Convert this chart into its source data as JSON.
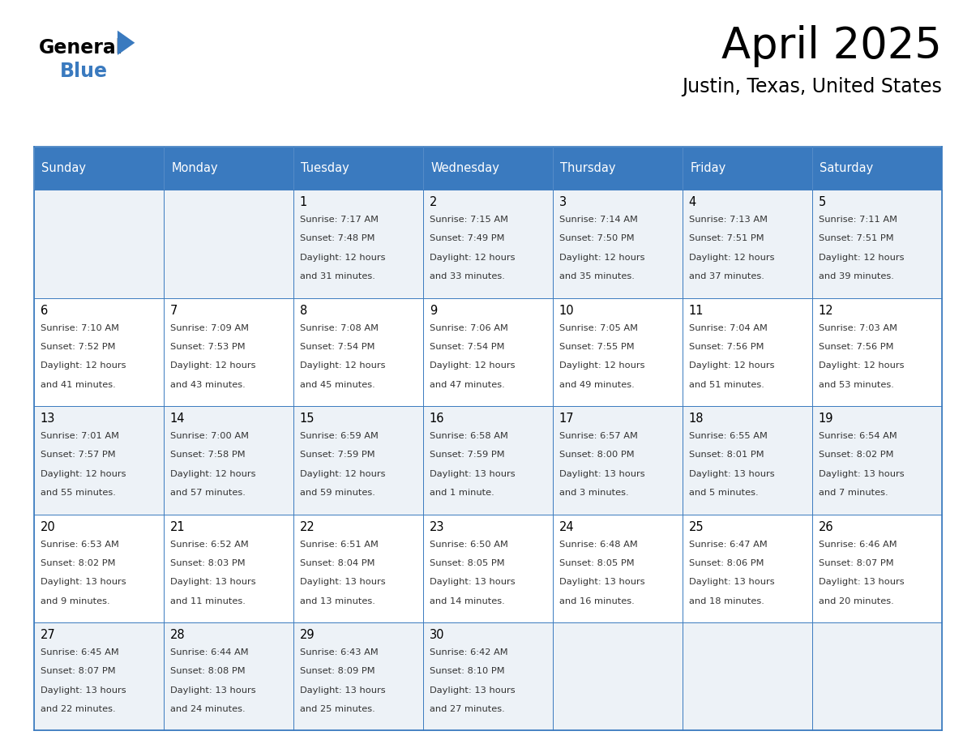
{
  "title": "April 2025",
  "subtitle": "Justin, Texas, United States",
  "header_color": "#3a7abf",
  "header_text_color": "#ffffff",
  "row_colors": [
    "#edf2f7",
    "#ffffff",
    "#edf2f7",
    "#ffffff",
    "#edf2f7"
  ],
  "border_color": "#3a7abf",
  "day_names": [
    "Sunday",
    "Monday",
    "Tuesday",
    "Wednesday",
    "Thursday",
    "Friday",
    "Saturday"
  ],
  "days": [
    {
      "date": 1,
      "col": 2,
      "row": 0,
      "sunrise": "7:17 AM",
      "sunset": "7:48 PM",
      "dl_hours": 12,
      "dl_minutes": 31
    },
    {
      "date": 2,
      "col": 3,
      "row": 0,
      "sunrise": "7:15 AM",
      "sunset": "7:49 PM",
      "dl_hours": 12,
      "dl_minutes": 33
    },
    {
      "date": 3,
      "col": 4,
      "row": 0,
      "sunrise": "7:14 AM",
      "sunset": "7:50 PM",
      "dl_hours": 12,
      "dl_minutes": 35
    },
    {
      "date": 4,
      "col": 5,
      "row": 0,
      "sunrise": "7:13 AM",
      "sunset": "7:51 PM",
      "dl_hours": 12,
      "dl_minutes": 37
    },
    {
      "date": 5,
      "col": 6,
      "row": 0,
      "sunrise": "7:11 AM",
      "sunset": "7:51 PM",
      "dl_hours": 12,
      "dl_minutes": 39
    },
    {
      "date": 6,
      "col": 0,
      "row": 1,
      "sunrise": "7:10 AM",
      "sunset": "7:52 PM",
      "dl_hours": 12,
      "dl_minutes": 41
    },
    {
      "date": 7,
      "col": 1,
      "row": 1,
      "sunrise": "7:09 AM",
      "sunset": "7:53 PM",
      "dl_hours": 12,
      "dl_minutes": 43
    },
    {
      "date": 8,
      "col": 2,
      "row": 1,
      "sunrise": "7:08 AM",
      "sunset": "7:54 PM",
      "dl_hours": 12,
      "dl_minutes": 45
    },
    {
      "date": 9,
      "col": 3,
      "row": 1,
      "sunrise": "7:06 AM",
      "sunset": "7:54 PM",
      "dl_hours": 12,
      "dl_minutes": 47
    },
    {
      "date": 10,
      "col": 4,
      "row": 1,
      "sunrise": "7:05 AM",
      "sunset": "7:55 PM",
      "dl_hours": 12,
      "dl_minutes": 49
    },
    {
      "date": 11,
      "col": 5,
      "row": 1,
      "sunrise": "7:04 AM",
      "sunset": "7:56 PM",
      "dl_hours": 12,
      "dl_minutes": 51
    },
    {
      "date": 12,
      "col": 6,
      "row": 1,
      "sunrise": "7:03 AM",
      "sunset": "7:56 PM",
      "dl_hours": 12,
      "dl_minutes": 53
    },
    {
      "date": 13,
      "col": 0,
      "row": 2,
      "sunrise": "7:01 AM",
      "sunset": "7:57 PM",
      "dl_hours": 12,
      "dl_minutes": 55
    },
    {
      "date": 14,
      "col": 1,
      "row": 2,
      "sunrise": "7:00 AM",
      "sunset": "7:58 PM",
      "dl_hours": 12,
      "dl_minutes": 57
    },
    {
      "date": 15,
      "col": 2,
      "row": 2,
      "sunrise": "6:59 AM",
      "sunset": "7:59 PM",
      "dl_hours": 12,
      "dl_minutes": 59
    },
    {
      "date": 16,
      "col": 3,
      "row": 2,
      "sunrise": "6:58 AM",
      "sunset": "7:59 PM",
      "dl_hours": 13,
      "dl_minutes": 1
    },
    {
      "date": 17,
      "col": 4,
      "row": 2,
      "sunrise": "6:57 AM",
      "sunset": "8:00 PM",
      "dl_hours": 13,
      "dl_minutes": 3
    },
    {
      "date": 18,
      "col": 5,
      "row": 2,
      "sunrise": "6:55 AM",
      "sunset": "8:01 PM",
      "dl_hours": 13,
      "dl_minutes": 5
    },
    {
      "date": 19,
      "col": 6,
      "row": 2,
      "sunrise": "6:54 AM",
      "sunset": "8:02 PM",
      "dl_hours": 13,
      "dl_minutes": 7
    },
    {
      "date": 20,
      "col": 0,
      "row": 3,
      "sunrise": "6:53 AM",
      "sunset": "8:02 PM",
      "dl_hours": 13,
      "dl_minutes": 9
    },
    {
      "date": 21,
      "col": 1,
      "row": 3,
      "sunrise": "6:52 AM",
      "sunset": "8:03 PM",
      "dl_hours": 13,
      "dl_minutes": 11
    },
    {
      "date": 22,
      "col": 2,
      "row": 3,
      "sunrise": "6:51 AM",
      "sunset": "8:04 PM",
      "dl_hours": 13,
      "dl_minutes": 13
    },
    {
      "date": 23,
      "col": 3,
      "row": 3,
      "sunrise": "6:50 AM",
      "sunset": "8:05 PM",
      "dl_hours": 13,
      "dl_minutes": 14
    },
    {
      "date": 24,
      "col": 4,
      "row": 3,
      "sunrise": "6:48 AM",
      "sunset": "8:05 PM",
      "dl_hours": 13,
      "dl_minutes": 16
    },
    {
      "date": 25,
      "col": 5,
      "row": 3,
      "sunrise": "6:47 AM",
      "sunset": "8:06 PM",
      "dl_hours": 13,
      "dl_minutes": 18
    },
    {
      "date": 26,
      "col": 6,
      "row": 3,
      "sunrise": "6:46 AM",
      "sunset": "8:07 PM",
      "dl_hours": 13,
      "dl_minutes": 20
    },
    {
      "date": 27,
      "col": 0,
      "row": 4,
      "sunrise": "6:45 AM",
      "sunset": "8:07 PM",
      "dl_hours": 13,
      "dl_minutes": 22
    },
    {
      "date": 28,
      "col": 1,
      "row": 4,
      "sunrise": "6:44 AM",
      "sunset": "8:08 PM",
      "dl_hours": 13,
      "dl_minutes": 24
    },
    {
      "date": 29,
      "col": 2,
      "row": 4,
      "sunrise": "6:43 AM",
      "sunset": "8:09 PM",
      "dl_hours": 13,
      "dl_minutes": 25
    },
    {
      "date": 30,
      "col": 3,
      "row": 4,
      "sunrise": "6:42 AM",
      "sunset": "8:10 PM",
      "dl_hours": 13,
      "dl_minutes": 27
    }
  ]
}
